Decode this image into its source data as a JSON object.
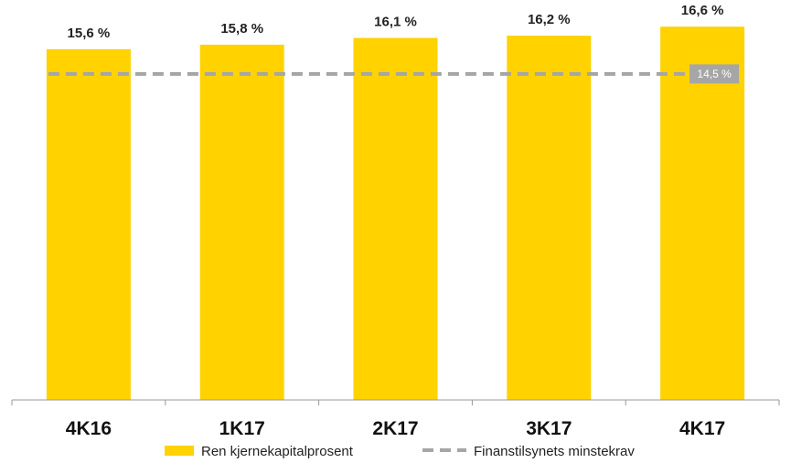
{
  "chart_data": {
    "type": "bar",
    "categories": [
      "4K16",
      "1K17",
      "2K17",
      "3K17",
      "4K17"
    ],
    "series": [
      {
        "name": "Ren kjernekapitalprosent",
        "type": "bar",
        "values": [
          15.6,
          15.8,
          16.1,
          16.2,
          16.6
        ],
        "value_labels": [
          "15,6 %",
          "15,8 %",
          "16,1 %",
          "16,2 %",
          "16,6 %"
        ],
        "color": "#FFD200"
      },
      {
        "name": "Finanstilsynets minstekrav",
        "type": "line",
        "style": "dashed",
        "values": [
          14.5,
          14.5,
          14.5,
          14.5,
          14.5
        ],
        "color": "#A6A6A6"
      }
    ],
    "annotations": [
      {
        "text": "14,5 %",
        "series": "Finanstilsynets minstekrav",
        "value": 14.5
      }
    ],
    "title": "",
    "xlabel": "",
    "ylabel": "",
    "ylim": [
      0,
      17.3
    ],
    "grid": false,
    "legend": "bottom"
  }
}
